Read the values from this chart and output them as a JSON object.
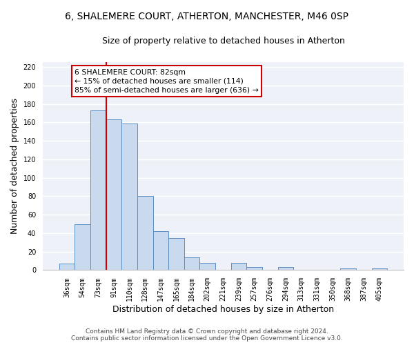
{
  "title": "6, SHALEMERE COURT, ATHERTON, MANCHESTER, M46 0SP",
  "subtitle": "Size of property relative to detached houses in Atherton",
  "xlabel": "Distribution of detached houses by size in Atherton",
  "ylabel": "Number of detached properties",
  "bar_labels": [
    "36sqm",
    "54sqm",
    "73sqm",
    "91sqm",
    "110sqm",
    "128sqm",
    "147sqm",
    "165sqm",
    "184sqm",
    "202sqm",
    "221sqm",
    "239sqm",
    "257sqm",
    "276sqm",
    "294sqm",
    "313sqm",
    "331sqm",
    "350sqm",
    "368sqm",
    "387sqm",
    "405sqm"
  ],
  "bar_values": [
    7,
    50,
    173,
    163,
    159,
    80,
    42,
    35,
    14,
    8,
    0,
    8,
    3,
    0,
    3,
    0,
    0,
    0,
    2,
    0,
    2
  ],
  "bar_color": "#c9d9ee",
  "bar_edge_color": "#5b8fc4",
  "vline_color": "#cc0000",
  "ylim": [
    0,
    225
  ],
  "yticks": [
    0,
    20,
    40,
    60,
    80,
    100,
    120,
    140,
    160,
    180,
    200,
    220
  ],
  "annotation_line1": "6 SHALEMERE COURT: 82sqm",
  "annotation_line2": "← 15% of detached houses are smaller (114)",
  "annotation_line3": "85% of semi-detached houses are larger (636) →",
  "annotation_box_color": "#cc0000",
  "footer_line1": "Contains HM Land Registry data © Crown copyright and database right 2024.",
  "footer_line2": "Contains public sector information licensed under the Open Government Licence v3.0.",
  "bg_color": "#ffffff",
  "plot_bg_color": "#eef2f8",
  "grid_color": "#ffffff",
  "title_fontsize": 10,
  "subtitle_fontsize": 9,
  "tick_fontsize": 7,
  "label_fontsize": 9,
  "footer_fontsize": 6.5
}
